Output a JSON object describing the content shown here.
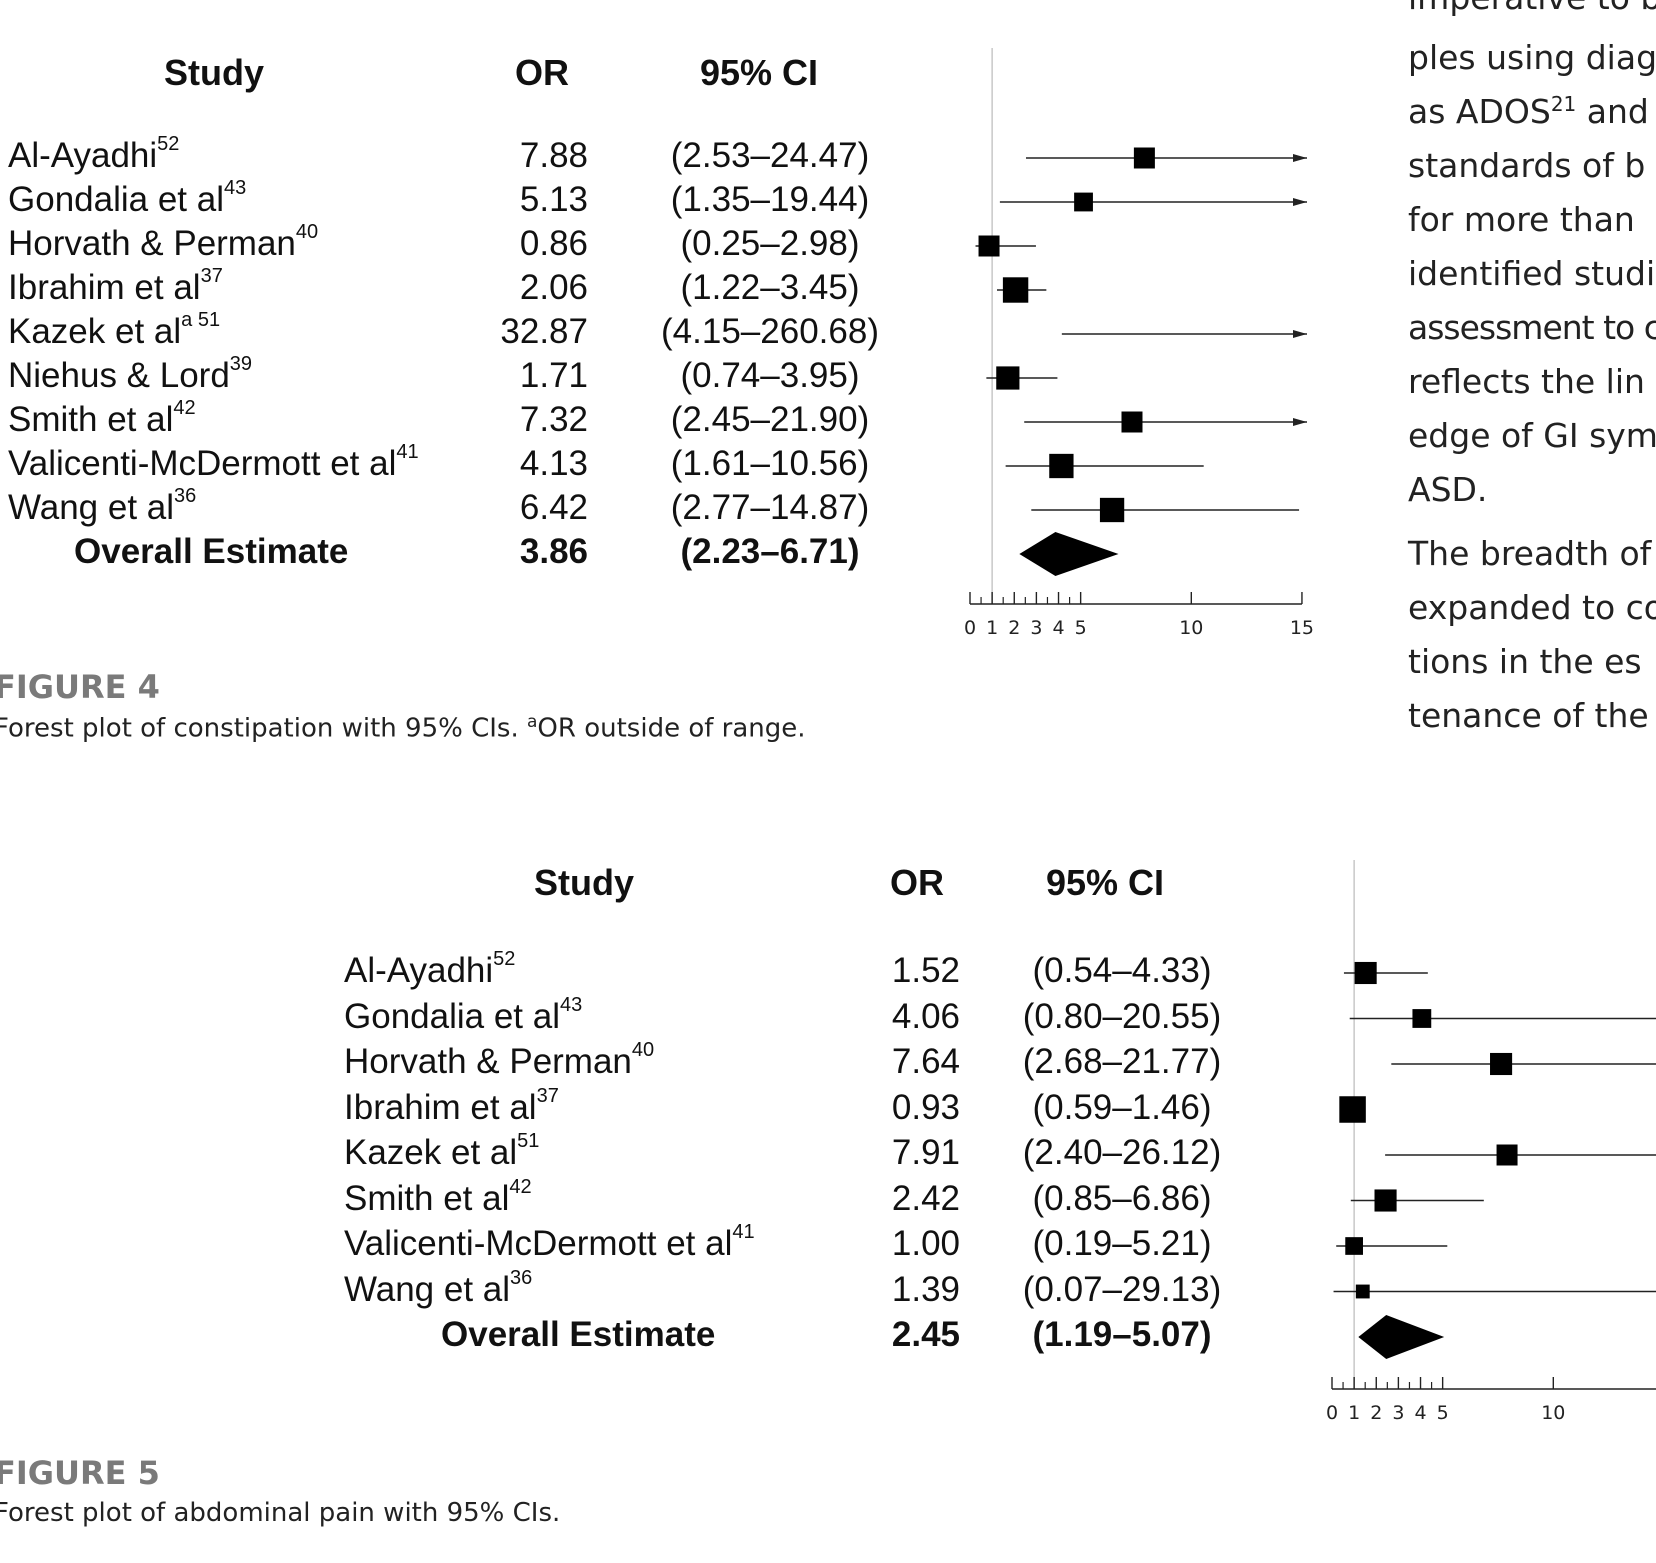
{
  "right_column": {
    "lines": [
      "imperative to b",
      "ples using diag",
      "as ADOS21 and",
      "standards of b",
      "for more than",
      "identified studi",
      "assessment to c",
      "reflects the lin",
      "edge of GI sym",
      "ASD.",
      "The breadth of",
      "expanded to co",
      "tions in the es",
      "tenance of the"
    ]
  },
  "fig4": {
    "label": "FIGURE 4",
    "caption_pre": "Forest plot of constipation with 95% CIs. ",
    "caption_sup": "a",
    "caption_post": "OR outside of range.",
    "headers": {
      "study": "Study",
      "or": "OR",
      "ci": "95% CI"
    },
    "rows": [
      {
        "name": "Al-Ayadhi",
        "ref": "52",
        "or": "7.88",
        "ci": "(2.53–24.47)"
      },
      {
        "name": "Gondalia et al",
        "ref": "43",
        "or": "5.13",
        "ci": "(1.35–19.44)"
      },
      {
        "name": "Horvath & Perman",
        "ref": "40",
        "or": "0.86",
        "ci": "(0.25–2.98)"
      },
      {
        "name": "Ibrahim et al",
        "ref": "37",
        "or": "2.06",
        "ci": "(1.22–3.45)"
      },
      {
        "name": "Kazek et al",
        "ref": "a 51",
        "or": "32.87",
        "ci": "(4.15–260.68)"
      },
      {
        "name": "Niehus & Lord",
        "ref": "39",
        "or": "1.71",
        "ci": "(0.74–3.95)"
      },
      {
        "name": "Smith et al",
        "ref": "42",
        "or": "7.32",
        "ci": "(2.45–21.90)"
      },
      {
        "name": "Valicenti-McDermott et al",
        "ref": "41",
        "or": "4.13",
        "ci": "(1.61–10.56)"
      },
      {
        "name": "Wang et al",
        "ref": "36",
        "or": "6.42",
        "ci": "(2.77–14.87)"
      }
    ],
    "overall": {
      "name": "Overall Estimate",
      "or": "3.86",
      "ci": "(2.23–6.71)"
    }
  },
  "fig5": {
    "label": "FIGURE 5",
    "caption": "Forest plot of abdominal pain with 95% CIs.",
    "headers": {
      "study": "Study",
      "or": "OR",
      "ci": "95% CI"
    },
    "rows": [
      {
        "name": "Al-Ayadhi",
        "ref": "52",
        "or": "1.52",
        "ci": "(0.54–4.33)"
      },
      {
        "name": "Gondalia et al",
        "ref": "43",
        "or": "4.06",
        "ci": "(0.80–20.55)"
      },
      {
        "name": "Horvath & Perman",
        "ref": "40",
        "or": "7.64",
        "ci": "(2.68–21.77)"
      },
      {
        "name": "Ibrahim et al",
        "ref": "37",
        "or": "0.93",
        "ci": "(0.59–1.46)"
      },
      {
        "name": "Kazek et al",
        "ref": "51",
        "or": "7.91",
        "ci": "(2.40–26.12)"
      },
      {
        "name": "Smith et al",
        "ref": "42",
        "or": "2.42",
        "ci": "(0.85–6.86)"
      },
      {
        "name": "Valicenti-McDermott et al",
        "ref": "41",
        "or": "1.00",
        "ci": "(0.19–5.21)"
      },
      {
        "name": "Wang et al",
        "ref": "36",
        "or": "1.39",
        "ci": "(0.07–29.13)"
      }
    ],
    "overall": {
      "name": "Overall Estimate",
      "or": "2.45",
      "ci": "(1.19–5.07)"
    }
  },
  "chart_data": [
    {
      "type": "forest",
      "title": "Forest plot of constipation",
      "x_ticks": [
        "0",
        "1",
        "2",
        "3",
        "4",
        "5",
        "10",
        "15"
      ],
      "xlim": [
        0,
        15
      ],
      "studies": [
        {
          "or": 7.88,
          "lo": 2.53,
          "hi": 24.47,
          "weight": 1.0
        },
        {
          "or": 5.13,
          "lo": 1.35,
          "hi": 19.44,
          "weight": 0.8
        },
        {
          "or": 0.86,
          "lo": 0.25,
          "hi": 2.98,
          "weight": 1.0
        },
        {
          "or": 2.06,
          "lo": 1.22,
          "hi": 3.45,
          "weight": 1.4
        },
        {
          "or": 32.87,
          "lo": 4.15,
          "hi": 260.68,
          "weight": 0
        },
        {
          "or": 1.71,
          "lo": 0.74,
          "hi": 3.95,
          "weight": 1.2
        },
        {
          "or": 7.32,
          "lo": 2.45,
          "hi": 21.9,
          "weight": 1.0
        },
        {
          "or": 4.13,
          "lo": 1.61,
          "hi": 10.56,
          "weight": 1.3
        },
        {
          "or": 6.42,
          "lo": 2.77,
          "hi": 14.87,
          "weight": 1.3
        }
      ],
      "overall": {
        "or": 3.86,
        "lo": 2.23,
        "hi": 6.71
      }
    },
    {
      "type": "forest",
      "title": "Forest plot of abdominal pain",
      "x_ticks": [
        "0",
        "1",
        "2",
        "3",
        "4",
        "5",
        "10"
      ],
      "xlim": [
        0,
        15
      ],
      "studies": [
        {
          "or": 1.52,
          "lo": 0.54,
          "hi": 4.33,
          "weight": 1.1
        },
        {
          "or": 4.06,
          "lo": 0.8,
          "hi": 20.55,
          "weight": 0.8
        },
        {
          "or": 7.64,
          "lo": 2.68,
          "hi": 21.77,
          "weight": 1.1
        },
        {
          "or": 0.93,
          "lo": 0.59,
          "hi": 1.46,
          "weight": 1.5
        },
        {
          "or": 7.91,
          "lo": 2.4,
          "hi": 26.12,
          "weight": 1.0
        },
        {
          "or": 2.42,
          "lo": 0.85,
          "hi": 6.86,
          "weight": 1.1
        },
        {
          "or": 1.0,
          "lo": 0.19,
          "hi": 5.21,
          "weight": 0.7
        },
        {
          "or": 1.39,
          "lo": 0.07,
          "hi": 29.13,
          "weight": 0.35
        }
      ],
      "overall": {
        "or": 2.45,
        "lo": 1.19,
        "hi": 5.07
      }
    }
  ]
}
